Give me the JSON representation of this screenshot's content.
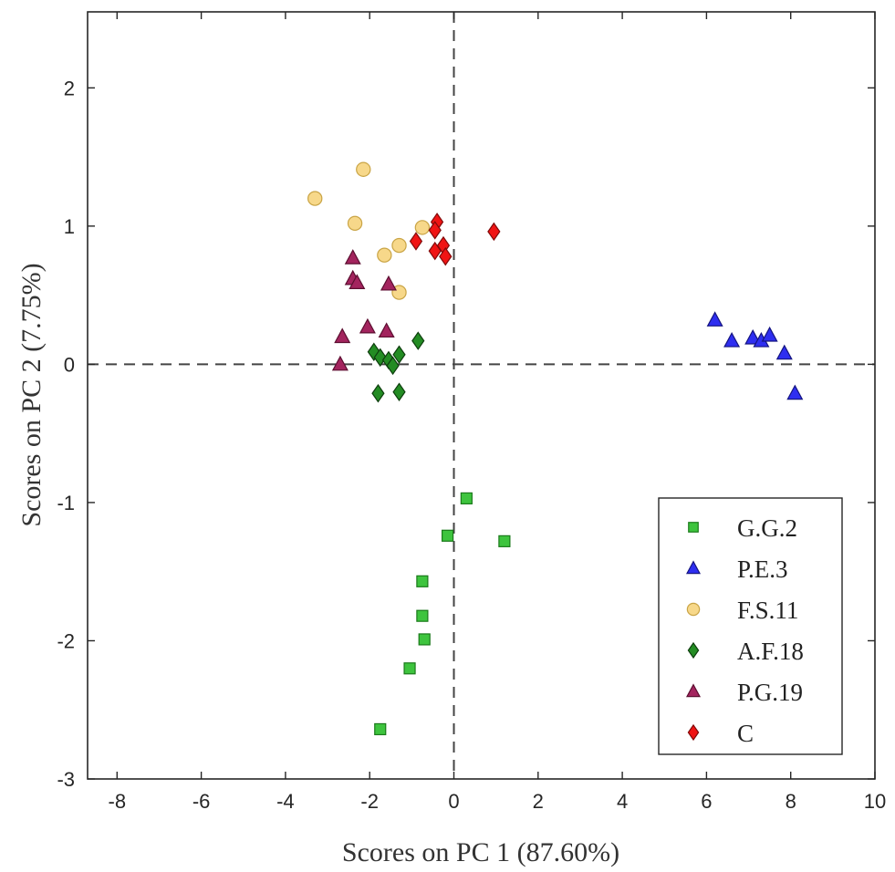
{
  "chart_data": {
    "type": "scatter",
    "xlabel": "Scores on PC 1 (87.60%)",
    "ylabel": "Scores on PC 2 (7.75%)",
    "xlim": [
      -8.7,
      10
    ],
    "ylim": [
      -3,
      2.55
    ],
    "xticks": [
      -8,
      -6,
      -4,
      -2,
      0,
      2,
      4,
      6,
      8,
      10
    ],
    "yticks": [
      -3,
      -2,
      -1,
      0,
      1,
      2
    ],
    "reference_lines": {
      "x": 0,
      "y": 0,
      "style": "dashed"
    },
    "legend_position": "bottom-right",
    "series": [
      {
        "name": "G.G.2",
        "marker": "square",
        "color": "#3ec43e",
        "edge": "#1a7a1a",
        "points": [
          [
            0.3,
            -0.97
          ],
          [
            -0.15,
            -1.24
          ],
          [
            1.2,
            -1.28
          ],
          [
            -0.75,
            -1.57
          ],
          [
            -0.75,
            -1.82
          ],
          [
            -0.7,
            -1.99
          ],
          [
            -1.05,
            -2.2
          ],
          [
            -1.75,
            -2.64
          ]
        ]
      },
      {
        "name": "P.E.3",
        "marker": "triangle",
        "color": "#2e2ef0",
        "edge": "#141480",
        "points": [
          [
            6.2,
            0.32
          ],
          [
            6.6,
            0.17
          ],
          [
            7.1,
            0.19
          ],
          [
            7.3,
            0.17
          ],
          [
            7.5,
            0.21
          ],
          [
            7.85,
            0.08
          ],
          [
            8.1,
            -0.21
          ]
        ]
      },
      {
        "name": "F.S.11",
        "marker": "circle",
        "color": "#f7d88a",
        "edge": "#c9a445",
        "points": [
          [
            -3.3,
            1.2
          ],
          [
            -2.15,
            1.41
          ],
          [
            -2.35,
            1.02
          ],
          [
            -0.75,
            0.99
          ],
          [
            -1.65,
            0.79
          ],
          [
            -1.3,
            0.86
          ],
          [
            -1.3,
            0.52
          ]
        ]
      },
      {
        "name": "A.F.18",
        "marker": "diamond",
        "color": "#238c23",
        "edge": "#0d3d0d",
        "points": [
          [
            -1.9,
            0.09
          ],
          [
            -1.75,
            0.05
          ],
          [
            -1.55,
            0.03
          ],
          [
            -1.45,
            -0.01
          ],
          [
            -1.3,
            0.07
          ],
          [
            -0.85,
            0.17
          ],
          [
            -1.8,
            -0.21
          ],
          [
            -1.3,
            -0.2
          ]
        ]
      },
      {
        "name": "P.G.19",
        "marker": "triangle",
        "color": "#a3245e",
        "edge": "#5c0e30",
        "points": [
          [
            -2.4,
            0.77
          ],
          [
            -2.4,
            0.62
          ],
          [
            -2.3,
            0.59
          ],
          [
            -1.55,
            0.58
          ],
          [
            -2.65,
            0.2
          ],
          [
            -2.05,
            0.27
          ],
          [
            -1.6,
            0.24
          ],
          [
            -2.7,
            0.0
          ]
        ]
      },
      {
        "name": "C",
        "marker": "diamond",
        "color": "#f01414",
        "edge": "#800a0a",
        "points": [
          [
            -0.4,
            1.03
          ],
          [
            -0.45,
            0.97
          ],
          [
            -0.9,
            0.89
          ],
          [
            -0.25,
            0.86
          ],
          [
            -0.45,
            0.82
          ],
          [
            -0.2,
            0.78
          ],
          [
            0.95,
            0.96
          ]
        ]
      }
    ]
  }
}
